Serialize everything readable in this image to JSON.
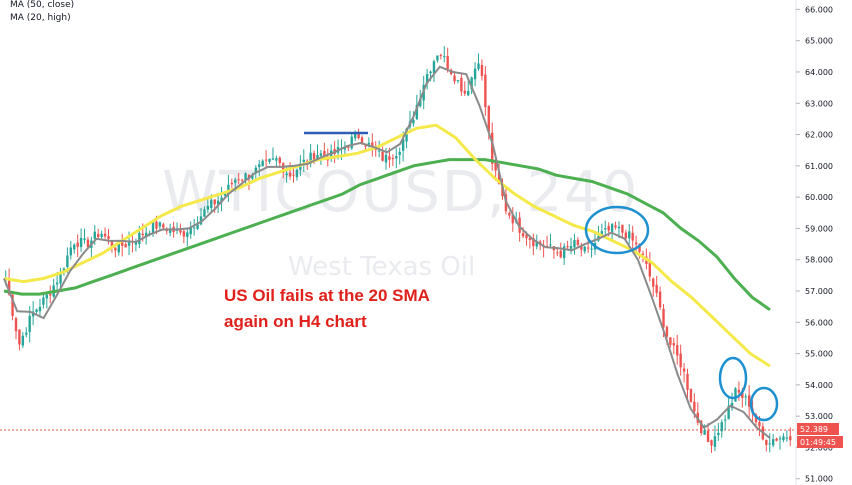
{
  "legend": {
    "ma50": "MA (50, close)",
    "ma20": "MA (20, high)"
  },
  "watermark": {
    "symbol": "WTICOUSD, 240",
    "name": "West Texas Oil"
  },
  "annotation": {
    "line1": "US Oil fails at the 20 SMA",
    "line2": "again on H4 chart"
  },
  "price_badge": {
    "price": "52.389",
    "countdown": "01:49:45"
  },
  "colors": {
    "up": "#26a69a",
    "down": "#ef5350",
    "ma50": "#4caf50",
    "ma20": "#f5e94a",
    "ma_fast": "#8a8a8a",
    "circle": "#1e90d0",
    "resistance": "#2f5fb5",
    "annotation": "#e0201b",
    "price_line": "#ef5350"
  },
  "chart_data": {
    "type": "candlestick",
    "symbol": "WTICOUSD",
    "timeframe": "240",
    "ylim": [
      50.8,
      66.3
    ],
    "y_ticks": [
      "66.000",
      "65.000",
      "64.000",
      "63.000",
      "62.000",
      "61.000",
      "60.000",
      "59.000",
      "58.000",
      "57.000",
      "56.000",
      "55.000",
      "54.000",
      "53.000",
      "52.000",
      "51.000"
    ],
    "last_price": 52.389,
    "close_series": [
      57.4,
      55.3,
      56.3,
      56.8,
      57.5,
      58.6,
      58.5,
      58.9,
      58.4,
      58.5,
      58.8,
      59.1,
      59.0,
      58.8,
      59.2,
      59.7,
      60.0,
      60.6,
      60.7,
      61.0,
      61.2,
      60.7,
      61.1,
      61.4,
      61.3,
      61.6,
      62.0,
      61.6,
      61.2,
      61.5,
      62.4,
      63.8,
      64.7,
      64.0,
      63.3,
      64.5,
      61.0,
      59.6,
      59.0,
      58.6,
      58.4,
      58.2,
      58.5,
      58.2,
      58.8,
      59.0,
      58.8,
      58.2,
      57.0,
      55.4,
      54.6,
      53.0,
      52.1,
      52.8,
      53.8,
      53.4,
      52.2,
      52.3,
      52.4
    ],
    "ma50_series": [
      57.0,
      56.9,
      56.9,
      57.0,
      57.1,
      57.3,
      57.5,
      57.7,
      57.9,
      58.1,
      58.3,
      58.5,
      58.7,
      58.9,
      59.1,
      59.3,
      59.5,
      59.7,
      59.9,
      60.1,
      60.4,
      60.6,
      60.8,
      61.0,
      61.1,
      61.2,
      61.2,
      61.2,
      61.1,
      61.0,
      60.9,
      60.7,
      60.6,
      60.5,
      60.3,
      60.1,
      59.8,
      59.5,
      59.0,
      58.6,
      58.1,
      57.4,
      56.8,
      56.4
    ],
    "ma20_series": [
      57.4,
      57.3,
      57.4,
      57.6,
      57.9,
      58.2,
      58.6,
      59.0,
      59.4,
      59.7,
      59.9,
      60.1,
      60.3,
      60.6,
      60.8,
      61.0,
      61.2,
      61.3,
      61.4,
      61.6,
      61.9,
      62.2,
      62.3,
      61.9,
      61.2,
      60.6,
      60.1,
      59.7,
      59.4,
      59.1,
      58.9,
      58.6,
      58.3,
      57.9,
      57.3,
      56.8,
      56.2,
      55.6,
      55.0,
      54.6
    ],
    "resistance_level": 62.1,
    "annotations": [
      "US Oil fails at the 20 SMA",
      "again on H4 chart"
    ]
  }
}
